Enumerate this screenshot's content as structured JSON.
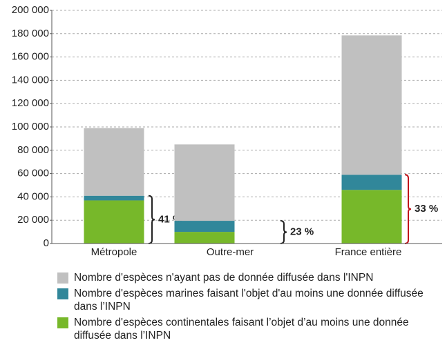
{
  "chart_data": {
    "type": "stacked-bar",
    "categories": [
      "Métropole",
      "Outre-mer",
      "France entière"
    ],
    "series": [
      {
        "name": "Nombre d'espèces n'ayant pas de donnée diffusée dans l'INPN",
        "color": "#c0c0c0",
        "values": [
          58000,
          65500,
          119500
        ]
      },
      {
        "name": "Nombre d'espèces marines faisant l'objet d'au moins une donnée diffusée dans l’INPN",
        "color": "#31879a",
        "values": [
          4000,
          9500,
          13000
        ]
      },
      {
        "name": "Nombre d'espèces continentales faisant l’objet d’au moins une donnée diffusée dans l’INPN",
        "color": "#77b82a",
        "values": [
          37000,
          10000,
          46000
        ]
      }
    ],
    "annotations": [
      {
        "text": "41 %",
        "color": "#222222"
      },
      {
        "text": "23 %",
        "color": "#222222"
      },
      {
        "text": "33 %",
        "color": "#c0141c"
      }
    ],
    "ylim": [
      0,
      200000
    ],
    "yticks": [
      0,
      {
        "value": 20000,
        "label": "20 000"
      },
      {
        "value": 40000,
        "label": "40 000"
      },
      {
        "value": 60000,
        "label": "60 000"
      },
      {
        "value": 80000,
        "label": "80 000"
      },
      {
        "value": 100000,
        "label": "100 000"
      },
      {
        "value": 120000,
        "label": "120 000"
      },
      {
        "value": 140000,
        "label": "140 000"
      },
      {
        "value": 160000,
        "label": "160 000"
      },
      {
        "value": 180000,
        "label": "180 000"
      },
      {
        "value": 200000,
        "label": "200 000"
      }
    ],
    "grid": true
  }
}
